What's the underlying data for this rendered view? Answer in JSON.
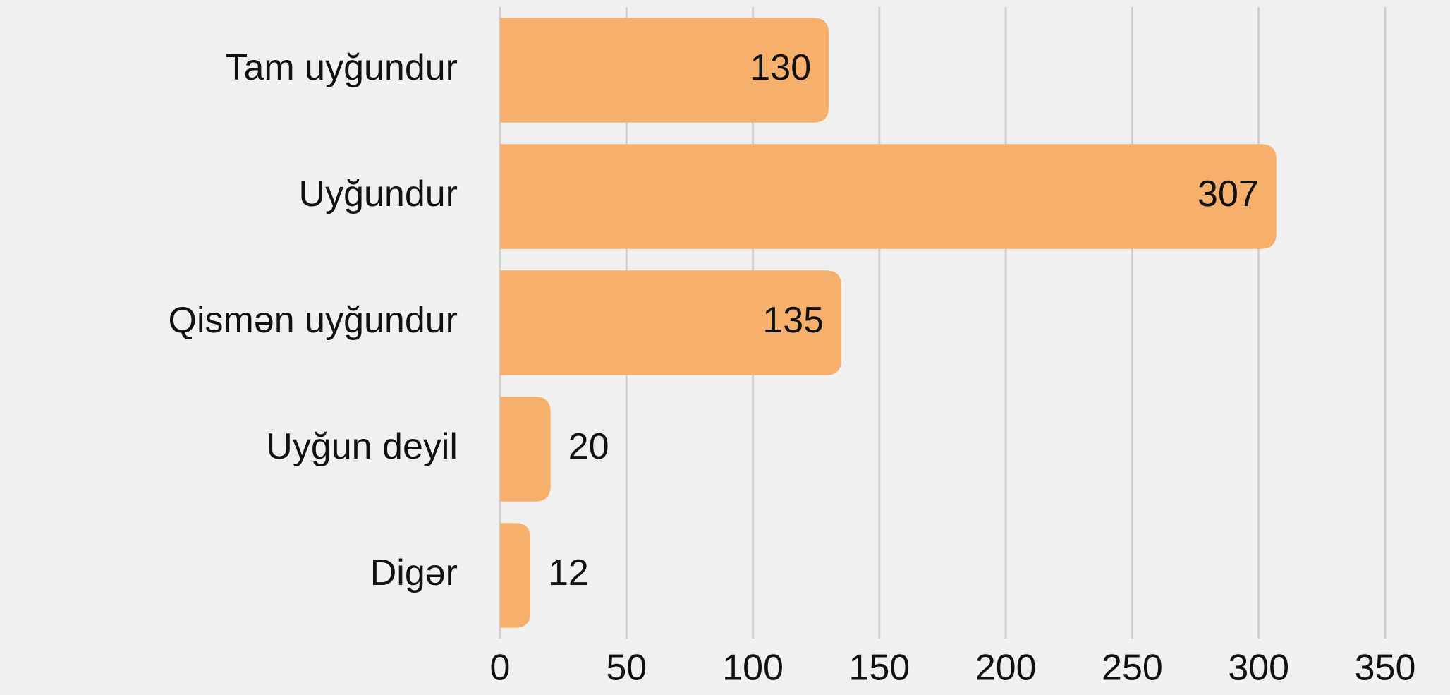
{
  "chart_data": {
    "type": "bar",
    "orientation": "horizontal",
    "categories": [
      "Tam uyğundur",
      "Uyğundur",
      "Qismən uyğundur",
      "Uyğun deyil",
      "Digər"
    ],
    "values": [
      130,
      307,
      135,
      20,
      12
    ],
    "color": "#f6b06b",
    "xlim": [
      0,
      350
    ],
    "xticks": [
      0,
      50,
      100,
      150,
      200,
      250,
      300,
      350
    ],
    "grid": true
  }
}
